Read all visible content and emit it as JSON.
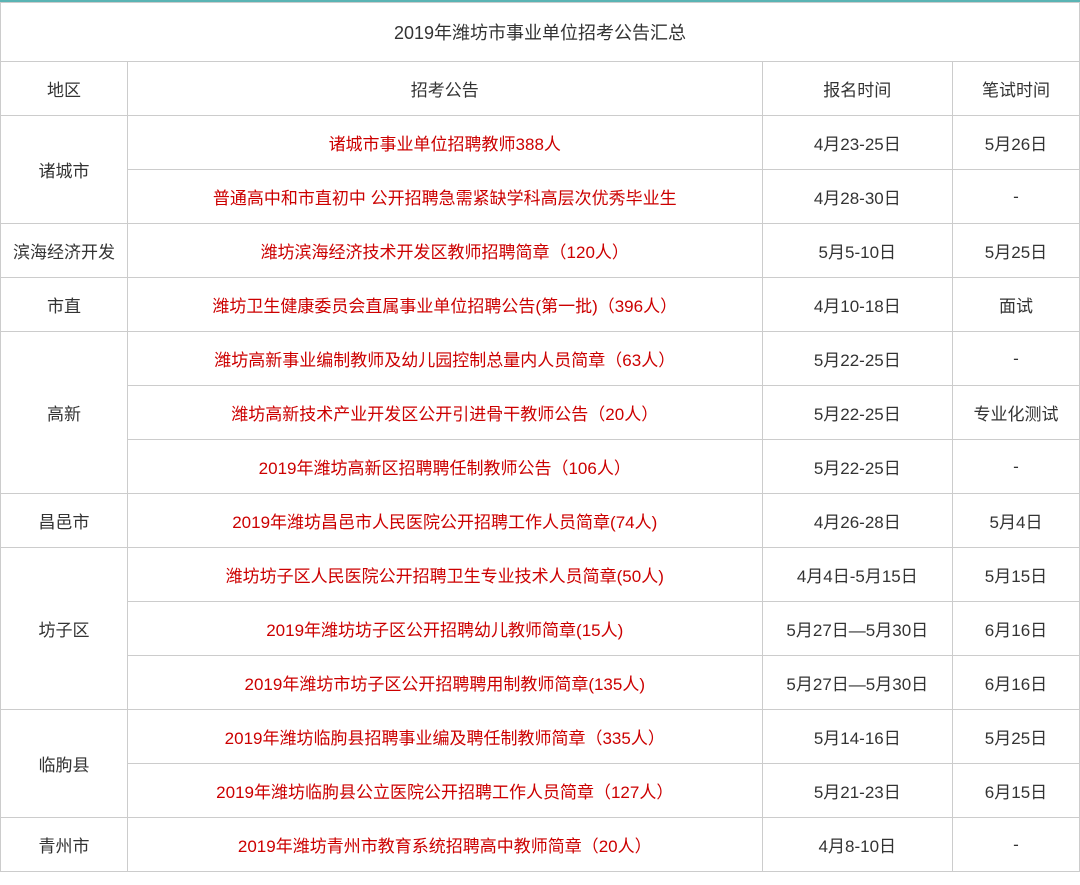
{
  "table": {
    "title": "2019年潍坊市事业单位招考公告汇总",
    "headers": {
      "region": "地区",
      "announcement": "招考公告",
      "regTime": "报名时间",
      "examTime": "笔试时间"
    },
    "colors": {
      "borderTop": "#5ab4b4",
      "cellBorder": "#cccccc",
      "announceText": "#cc0000",
      "normalText": "#333333",
      "background": "#ffffff"
    },
    "fontSizes": {
      "title": 18,
      "header": 17,
      "cell": 17
    },
    "groups": [
      {
        "region": "诸城市",
        "rows": [
          {
            "announce": "诸城市事业单位招聘教师388人",
            "regTime": "4月23-25日",
            "examTime": "5月26日"
          },
          {
            "announce": "普通高中和市直初中 公开招聘急需紧缺学科高层次优秀毕业生",
            "regTime": "4月28-30日",
            "examTime": "-"
          }
        ]
      },
      {
        "region": "滨海经济开发",
        "rows": [
          {
            "announce": "潍坊滨海经济技术开发区教师招聘简章（120人）",
            "regTime": "5月5-10日",
            "examTime": "5月25日"
          }
        ]
      },
      {
        "region": "市直",
        "rows": [
          {
            "announce": "潍坊卫生健康委员会直属事业单位招聘公告(第一批)（396人）",
            "regTime": "4月10-18日",
            "examTime": "面试"
          }
        ]
      },
      {
        "region": "高新",
        "rows": [
          {
            "announce": "潍坊高新事业编制教师及幼儿园控制总量内人员简章（63人）",
            "regTime": "5月22-25日",
            "examTime": "-"
          },
          {
            "announce": "潍坊高新技术产业开发区公开引进骨干教师公告（20人）",
            "regTime": "5月22-25日",
            "examTime": "专业化测试"
          },
          {
            "announce": "2019年潍坊高新区招聘聘任制教师公告（106人）",
            "regTime": "5月22-25日",
            "examTime": "-"
          }
        ]
      },
      {
        "region": "昌邑市",
        "rows": [
          {
            "announce": "2019年潍坊昌邑市人民医院公开招聘工作人员简章(74人)",
            "regTime": "4月26-28日",
            "examTime": "5月4日"
          }
        ]
      },
      {
        "region": "坊子区",
        "rows": [
          {
            "announce": "潍坊坊子区人民医院公开招聘卫生专业技术人员简章(50人)",
            "regTime": "4月4日-5月15日",
            "examTime": "5月15日"
          },
          {
            "announce": "2019年潍坊坊子区公开招聘幼儿教师简章(15人)",
            "regTime": "5月27日—5月30日",
            "examTime": "6月16日"
          },
          {
            "announce": "2019年潍坊市坊子区公开招聘聘用制教师简章(135人)",
            "regTime": "5月27日—5月30日",
            "examTime": "6月16日"
          }
        ]
      },
      {
        "region": "临朐县",
        "rows": [
          {
            "announce": "2019年潍坊临朐县招聘事业编及聘任制教师简章（335人）",
            "regTime": "5月14-16日",
            "examTime": "5月25日"
          },
          {
            "announce": "2019年潍坊临朐县公立医院公开招聘工作人员简章（127人）",
            "regTime": "5月21-23日",
            "examTime": "6月15日"
          }
        ]
      },
      {
        "region": "青州市",
        "rows": [
          {
            "announce": "2019年潍坊青州市教育系统招聘高中教师简章（20人）",
            "regTime": "4月8-10日",
            "examTime": "-"
          }
        ]
      }
    ]
  }
}
